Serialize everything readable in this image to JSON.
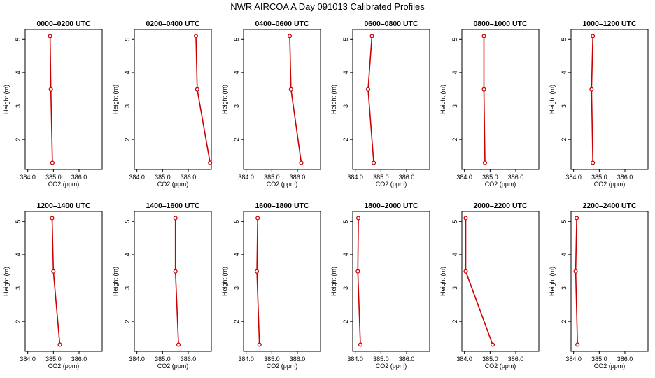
{
  "page": {
    "title": "NWR AIRCOA A  Day 091013  Calibrated Profiles"
  },
  "colors": {
    "profile": "#cc0000",
    "axis": "#000000",
    "background": "#ffffff"
  },
  "chart_data": {
    "type": "line",
    "layout": "2 rows x 6 panels",
    "xlabel": "CO2 (ppm)",
    "ylabel": "Height (m)",
    "xlim": [
      383.9,
      386.9
    ],
    "ylim": [
      1.1,
      5.3
    ],
    "xticks": [
      "384.0",
      "385.0",
      "386.0"
    ],
    "xtick_values": [
      384.0,
      385.0,
      386.0
    ],
    "yticks": [
      "2",
      "3",
      "4",
      "5"
    ],
    "ytick_values": [
      2,
      3,
      4,
      5
    ],
    "panels": [
      {
        "title": "0000–0200 UTC",
        "co2": [
          384.87,
          384.9,
          384.96
        ],
        "height": [
          5.1,
          3.5,
          1.3
        ]
      },
      {
        "title": "0200–0400 UTC",
        "co2": [
          386.3,
          386.35,
          386.85
        ],
        "height": [
          5.1,
          3.5,
          1.3
        ]
      },
      {
        "title": "0400–0600 UTC",
        "co2": [
          385.7,
          385.75,
          386.15
        ],
        "height": [
          5.1,
          3.5,
          1.3
        ]
      },
      {
        "title": "0600–0800 UTC",
        "co2": [
          384.65,
          384.5,
          384.72
        ],
        "height": [
          5.1,
          3.5,
          1.3
        ]
      },
      {
        "title": "0800–1000 UTC",
        "co2": [
          384.76,
          384.76,
          384.8
        ],
        "height": [
          5.1,
          3.5,
          1.3
        ]
      },
      {
        "title": "1000–1200 UTC",
        "co2": [
          384.75,
          384.7,
          384.75
        ],
        "height": [
          5.1,
          3.5,
          1.3
        ]
      },
      {
        "title": "1200–1400 UTC",
        "co2": [
          384.95,
          385.0,
          385.25
        ],
        "height": [
          5.1,
          3.5,
          1.3
        ]
      },
      {
        "title": "1400–1600 UTC",
        "co2": [
          385.5,
          385.5,
          385.62
        ],
        "height": [
          5.1,
          3.5,
          1.3
        ]
      },
      {
        "title": "1600–1800 UTC",
        "co2": [
          384.45,
          384.42,
          384.52
        ],
        "height": [
          5.1,
          3.5,
          1.3
        ]
      },
      {
        "title": "1800–2000 UTC",
        "co2": [
          384.12,
          384.1,
          384.2
        ],
        "height": [
          5.1,
          3.5,
          1.3
        ]
      },
      {
        "title": "2000–2200 UTC",
        "co2": [
          384.05,
          384.05,
          385.1
        ],
        "height": [
          5.1,
          3.5,
          1.3
        ]
      },
      {
        "title": "2200–2400 UTC",
        "co2": [
          384.12,
          384.08,
          384.15
        ],
        "height": [
          5.1,
          3.5,
          1.3
        ]
      }
    ]
  }
}
